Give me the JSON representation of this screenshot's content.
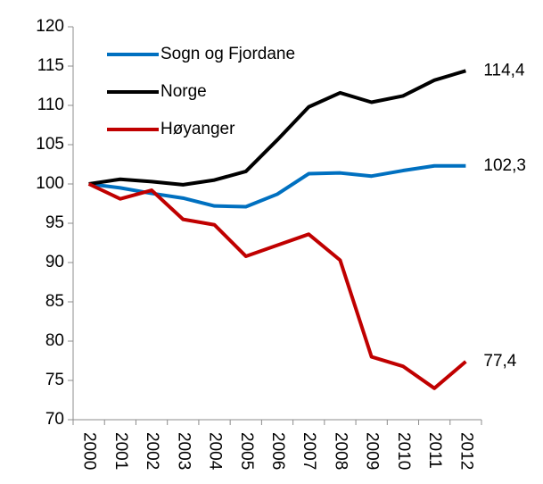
{
  "chart_data": {
    "type": "line",
    "categories": [
      "2000",
      "2001",
      "2002",
      "2003",
      "2004",
      "2005",
      "2006",
      "2007",
      "2008",
      "2009",
      "2010",
      "2011",
      "2012"
    ],
    "series": [
      {
        "name": "Sogn og Fjordane",
        "color": "#0070c0",
        "values": [
          100,
          99.5,
          98.8,
          98.2,
          97.2,
          97.1,
          98.7,
          101.3,
          101.4,
          101.0,
          101.7,
          102.3,
          102.3
        ],
        "value_labels": [
          null,
          null,
          null,
          null,
          null,
          null,
          null,
          null,
          null,
          null,
          null,
          null,
          "102,3"
        ]
      },
      {
        "name": "Norge",
        "color": "#000000",
        "values": [
          100,
          100.6,
          100.3,
          99.9,
          100.5,
          101.6,
          105.6,
          109.8,
          111.6,
          110.4,
          111.2,
          113.2,
          114.4
        ],
        "value_labels": [
          null,
          null,
          null,
          null,
          null,
          null,
          null,
          null,
          null,
          null,
          null,
          null,
          "114,4"
        ]
      },
      {
        "name": "Høyanger",
        "color": "#c00000",
        "values": [
          100,
          98.1,
          99.2,
          95.5,
          94.8,
          90.8,
          92.2,
          93.6,
          90.3,
          78.0,
          76.8,
          74.0,
          77.4
        ],
        "value_labels": [
          null,
          null,
          null,
          null,
          null,
          null,
          null,
          null,
          null,
          null,
          null,
          null,
          "77,4"
        ]
      }
    ],
    "ylim": [
      70,
      120
    ],
    "yticks": [
      70,
      75,
      80,
      85,
      90,
      95,
      100,
      105,
      110,
      115,
      120
    ],
    "grid": false,
    "legend": "upper left"
  }
}
